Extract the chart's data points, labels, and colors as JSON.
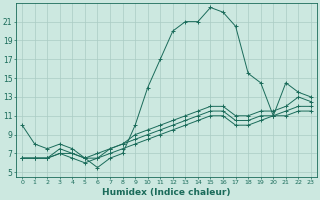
{
  "xlabel": "Humidex (Indice chaleur)",
  "ylabel": "",
  "bg_color": "#cce8e0",
  "grid_color": "#aaccc4",
  "line_color": "#1a6b5a",
  "xlim": [
    -0.5,
    23.5
  ],
  "ylim": [
    4.5,
    23
  ],
  "xticks": [
    0,
    1,
    2,
    3,
    4,
    5,
    6,
    7,
    8,
    9,
    10,
    11,
    12,
    13,
    14,
    15,
    16,
    17,
    18,
    19,
    20,
    21,
    22,
    23
  ],
  "yticks": [
    5,
    7,
    9,
    11,
    13,
    15,
    17,
    19,
    21
  ],
  "curves": [
    {
      "x": [
        0,
        1,
        2,
        3,
        4,
        5,
        6,
        7,
        8,
        9,
        10,
        11,
        12,
        13,
        14,
        15,
        16,
        17,
        18,
        19,
        20,
        21,
        22,
        23
      ],
      "y": [
        10,
        8,
        7.5,
        8,
        7.5,
        6.5,
        5.5,
        6.5,
        7,
        10,
        14,
        17,
        20,
        21,
        21,
        22.5,
        22,
        20.5,
        15.5,
        14.5,
        11,
        14.5,
        13.5,
        13
      ],
      "marker": "+"
    },
    {
      "x": [
        0,
        1,
        2,
        3,
        4,
        5,
        6,
        7,
        8,
        9,
        10,
        11,
        12,
        13,
        14,
        15,
        16,
        17,
        18,
        19,
        20,
        21,
        22,
        23
      ],
      "y": [
        6.5,
        6.5,
        6.5,
        7.0,
        7.0,
        6.5,
        7.0,
        7.5,
        8.0,
        8.5,
        9.0,
        9.5,
        10.0,
        10.5,
        11.0,
        11.5,
        11.5,
        10.5,
        10.5,
        11.0,
        11.0,
        11.5,
        12.0,
        12.0
      ],
      "marker": "+"
    },
    {
      "x": [
        0,
        1,
        2,
        3,
        4,
        5,
        6,
        7,
        8,
        9,
        10,
        11,
        12,
        13,
        14,
        15,
        16,
        17,
        18,
        19,
        20,
        21,
        22,
        23
      ],
      "y": [
        6.5,
        6.5,
        6.5,
        7.0,
        6.5,
        6.0,
        6.5,
        7.0,
        7.5,
        8.0,
        8.5,
        9.0,
        9.5,
        10.0,
        10.5,
        11.0,
        11.0,
        10.0,
        10.0,
        10.5,
        11.0,
        11.0,
        11.5,
        11.5
      ],
      "marker": "+"
    },
    {
      "x": [
        0,
        1,
        2,
        3,
        4,
        5,
        6,
        7,
        8,
        9,
        10,
        11,
        12,
        13,
        14,
        15,
        16,
        17,
        18,
        19,
        20,
        21,
        22,
        23
      ],
      "y": [
        6.5,
        6.5,
        6.5,
        7.5,
        7.0,
        6.5,
        6.5,
        7.5,
        8.0,
        9.0,
        9.5,
        10.0,
        10.5,
        11.0,
        11.5,
        12.0,
        12.0,
        11.0,
        11.0,
        11.5,
        11.5,
        12.0,
        13.0,
        12.5
      ],
      "marker": "+"
    }
  ]
}
